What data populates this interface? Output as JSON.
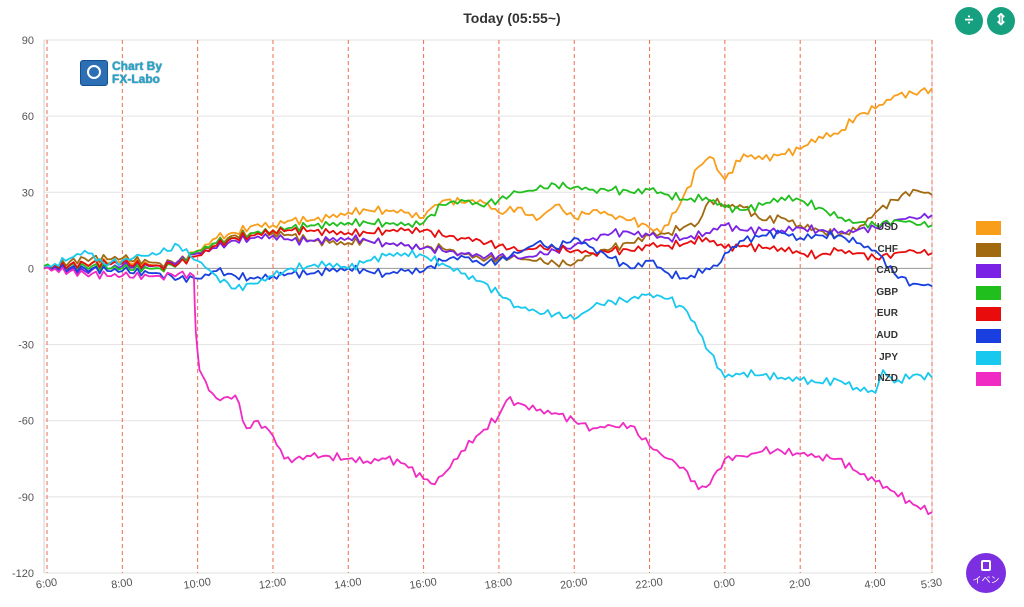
{
  "header": {
    "title": "Today  (05:55~)"
  },
  "logo": {
    "line1": "Chart By",
    "line2": "FX-Labo"
  },
  "toolbar": {
    "compress_icon": "compress-vertical-icon",
    "expand_icon": "expand-vertical-icon"
  },
  "event_button": {
    "label": "イベン"
  },
  "chart_data": {
    "type": "line",
    "title": "Today  (05:55~)",
    "xlabel": "",
    "ylabel": "",
    "ylim": [
      -120,
      90
    ],
    "yticks": [
      90,
      60,
      30,
      0,
      -30,
      -60,
      -90,
      -120
    ],
    "xlim": [
      5.92,
      29.5
    ],
    "xticks": [
      {
        "t": 6,
        "label": "6:00"
      },
      {
        "t": 8,
        "label": "8:00"
      },
      {
        "t": 10,
        "label": "10:00"
      },
      {
        "t": 12,
        "label": "12:00"
      },
      {
        "t": 14,
        "label": "14:00"
      },
      {
        "t": 16,
        "label": "16:00"
      },
      {
        "t": 18,
        "label": "18:00"
      },
      {
        "t": 20,
        "label": "20:00"
      },
      {
        "t": 22,
        "label": "22:00"
      },
      {
        "t": 24,
        "label": "0:00"
      },
      {
        "t": 26,
        "label": "2:00"
      },
      {
        "t": 28,
        "label": "4:00"
      },
      {
        "t": 29.5,
        "label": "5:30"
      }
    ],
    "grid": "horizontal",
    "legend_position": "right",
    "series": [
      {
        "name": "USD",
        "color": "#f89e1a",
        "x": [
          5.92,
          7,
          8,
          9,
          9.5,
          10,
          10.5,
          11,
          11.5,
          12,
          12.5,
          13,
          13.5,
          14,
          14.5,
          15,
          15.5,
          16,
          16.3,
          16.6,
          17,
          17.5,
          18,
          18.5,
          19,
          19.5,
          20,
          20.5,
          21,
          21.5,
          22,
          22.3,
          22.8,
          23.3,
          23.6,
          24,
          24.5,
          25,
          25.5,
          26,
          26.5,
          27,
          27.5,
          28,
          28.5,
          29,
          29.5
        ],
        "values": [
          0,
          2,
          3,
          1,
          3,
          7,
          12,
          14,
          17,
          17,
          19,
          19,
          20,
          22,
          23,
          23,
          22,
          20,
          25,
          27,
          26,
          27,
          22,
          24,
          19,
          25,
          20,
          23,
          21,
          19,
          16,
          14,
          25,
          40,
          44,
          35,
          45,
          43,
          45,
          47,
          52,
          53,
          60,
          63,
          68,
          69,
          71
        ]
      },
      {
        "name": "CHF",
        "color": "#a16a10",
        "x": [
          5.92,
          7,
          8,
          9,
          9.5,
          10,
          10.5,
          11,
          11.5,
          12,
          12.5,
          13,
          13.5,
          14,
          14.5,
          15,
          15.5,
          16,
          16.5,
          17,
          17.5,
          18,
          18.5,
          19,
          19.5,
          20,
          20.5,
          21,
          21.5,
          22,
          22.5,
          23,
          23.3,
          23.6,
          24,
          24.5,
          25,
          25.5,
          26,
          26.5,
          27,
          27.5,
          28,
          28.5,
          29,
          29.5
        ],
        "values": [
          0,
          4,
          4,
          2,
          3,
          6,
          10,
          13,
          14,
          14,
          13,
          11,
          10,
          10,
          11,
          10,
          9,
          8,
          8,
          6,
          4,
          4,
          4,
          3,
          2,
          2,
          6,
          8,
          10,
          13,
          14,
          17,
          18,
          27,
          25,
          24,
          19,
          20,
          17,
          15,
          13,
          15,
          22,
          27,
          31,
          29
        ]
      },
      {
        "name": "CAD",
        "color": "#7a22e6",
        "x": [
          5.92,
          7,
          8,
          9,
          9.5,
          10,
          10.5,
          11,
          11.5,
          12,
          12.5,
          13,
          13.5,
          14,
          14.5,
          15,
          15.5,
          16,
          16.5,
          17,
          17.5,
          18,
          18.5,
          19,
          19.5,
          20,
          20.5,
          21,
          21.5,
          22,
          22.5,
          23,
          23.5,
          24,
          24.5,
          25,
          25.5,
          26,
          26.5,
          27,
          27.5,
          28,
          28.5,
          29,
          29.5
        ],
        "values": [
          0,
          -1,
          1,
          1,
          3,
          6,
          8,
          11,
          12,
          13,
          11,
          11,
          11,
          12,
          11,
          10,
          9,
          8,
          7,
          6,
          5,
          5,
          4,
          5,
          7,
          9,
          12,
          14,
          14,
          13,
          12,
          12,
          14,
          17,
          15,
          15,
          15,
          16,
          15,
          14,
          15,
          16,
          19,
          20,
          21
        ]
      },
      {
        "name": "GBP",
        "color": "#20bf1d",
        "x": [
          5.92,
          7,
          8,
          9,
          9.5,
          10,
          10.5,
          11,
          11.5,
          12,
          12.5,
          13,
          13.5,
          14,
          14.5,
          15,
          15.5,
          16,
          16.5,
          17,
          17.5,
          18,
          18.5,
          19,
          19.5,
          20,
          20.5,
          21,
          21.5,
          22,
          22.5,
          23,
          23.5,
          24,
          24.5,
          25,
          25.5,
          26,
          26.5,
          27,
          27.5,
          28,
          28.5,
          29,
          29.5
        ],
        "values": [
          1,
          1,
          0,
          0,
          2,
          7,
          10,
          12,
          14,
          15,
          16,
          17,
          17,
          18,
          18,
          18,
          17,
          18,
          25,
          27,
          25,
          27,
          30,
          31,
          33,
          32,
          31,
          31,
          30,
          31,
          29,
          27,
          28,
          24,
          23,
          25,
          28,
          27,
          24,
          20,
          18,
          17,
          19,
          18,
          17
        ]
      },
      {
        "name": "EUR",
        "color": "#e80c0c",
        "x": [
          5.92,
          7,
          8,
          9,
          9.5,
          10,
          10.5,
          11,
          11.5,
          12,
          12.5,
          13,
          13.5,
          14,
          14.5,
          15,
          15.5,
          16,
          16.5,
          17,
          17.5,
          18,
          18.5,
          19,
          19.5,
          20,
          20.5,
          21,
          21.5,
          22,
          22.5,
          23,
          23.5,
          24,
          24.5,
          25,
          25.5,
          26,
          26.5,
          27,
          27.5,
          28,
          28.5,
          29,
          29.5
        ],
        "values": [
          0,
          2,
          2,
          1,
          2,
          5,
          9,
          12,
          13,
          15,
          15,
          15,
          14,
          14,
          14,
          15,
          15,
          15,
          13,
          12,
          11,
          9,
          7,
          8,
          8,
          7,
          6,
          7,
          7,
          9,
          9,
          10,
          12,
          8,
          9,
          8,
          8,
          6,
          5,
          7,
          6,
          4,
          6,
          7,
          6
        ]
      },
      {
        "name": "AUD",
        "color": "#1a3fe0",
        "x": [
          5.92,
          7,
          8,
          9,
          9.5,
          10,
          10.5,
          11,
          11.5,
          12,
          12.5,
          13,
          13.5,
          14,
          14.5,
          15,
          15.5,
          16,
          16.5,
          17,
          17.5,
          18,
          18.5,
          19,
          19.5,
          20,
          20.5,
          21,
          21.5,
          22,
          22.5,
          23,
          23.5,
          23.8,
          24,
          24.5,
          25,
          25.5,
          26,
          26.5,
          27,
          27.5,
          28,
          28.5,
          29,
          29.5
        ],
        "values": [
          0,
          0,
          -1,
          -2,
          -4,
          -4,
          -1,
          -3,
          -4,
          -3,
          -2,
          -2,
          -1,
          0,
          -1,
          -2,
          -1,
          -1,
          3,
          5,
          2,
          3,
          6,
          10,
          8,
          12,
          8,
          4,
          0,
          3,
          -2,
          -4,
          0,
          1,
          6,
          11,
          13,
          14,
          12,
          13,
          13,
          10,
          7,
          -2,
          -6,
          -7
        ]
      },
      {
        "name": "JPY",
        "color": "#19c8ef",
        "x": [
          5.92,
          6.5,
          7,
          7.5,
          8,
          8.5,
          9,
          9.5,
          10,
          10.5,
          11,
          11.5,
          12,
          12.5,
          13,
          13.5,
          14,
          14.5,
          15,
          15.5,
          16,
          16.5,
          17,
          17.5,
          18,
          18.5,
          19,
          19.5,
          20,
          20.5,
          21,
          21.5,
          22,
          22.5,
          23,
          23.3,
          23.6,
          24,
          24.5,
          25,
          25.5,
          26,
          26.5,
          27,
          27.5,
          28,
          28.2,
          28.5,
          29,
          29.5
        ],
        "values": [
          0,
          3,
          7,
          2,
          3,
          5,
          6,
          9,
          3,
          -3,
          -8,
          -6,
          -3,
          0,
          1,
          2,
          0,
          3,
          5,
          6,
          5,
          2,
          -2,
          -5,
          -10,
          -15,
          -17,
          -18,
          -20,
          -15,
          -13,
          -12,
          -10,
          -12,
          -17,
          -25,
          -33,
          -43,
          -41,
          -42,
          -43,
          -44,
          -45,
          -44,
          -47,
          -49,
          -40,
          -45,
          -42,
          -43
        ]
      },
      {
        "name": "NZD",
        "color": "#ef2bc4",
        "x": [
          5.92,
          7,
          8,
          9,
          9.5,
          9.9,
          9.95,
          10.05,
          10.3,
          10.6,
          11,
          11.3,
          11.6,
          12,
          12.3,
          12.6,
          13,
          13.5,
          14,
          14.5,
          15,
          15.5,
          16,
          16.3,
          16.6,
          17,
          17.5,
          18,
          18.2,
          18.5,
          19,
          19.5,
          20,
          20.5,
          21,
          21.5,
          22,
          22.5,
          23,
          23.3,
          23.6,
          24,
          24.5,
          25,
          25.5,
          26,
          26.5,
          27,
          27.5,
          28,
          28.5,
          29,
          29.5
        ],
        "values": [
          0,
          -2,
          -3,
          -3,
          -2,
          -3,
          -25,
          -40,
          -48,
          -52,
          -50,
          -63,
          -60,
          -66,
          -75,
          -75,
          -74,
          -74,
          -75,
          -76,
          -75,
          -77,
          -83,
          -85,
          -80,
          -72,
          -65,
          -58,
          -52,
          -53,
          -56,
          -57,
          -60,
          -63,
          -62,
          -62,
          -70,
          -75,
          -80,
          -87,
          -85,
          -75,
          -74,
          -72,
          -72,
          -73,
          -74,
          -75,
          -80,
          -84,
          -88,
          -93,
          -96
        ]
      }
    ]
  }
}
